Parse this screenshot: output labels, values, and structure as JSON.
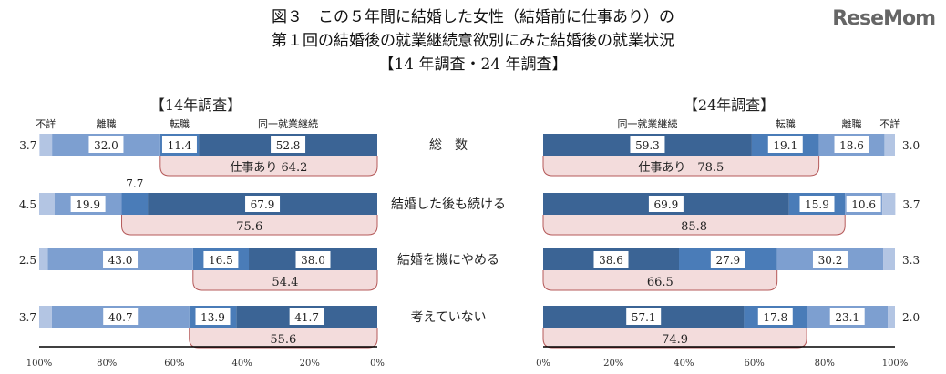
{
  "title": {
    "line1": "図３　この５年間に結婚した女性（結婚前に仕事あり）の",
    "line2": "第１回の結婚後の就業継続意欲別にみた結婚後の就業状況",
    "line3": "【14 年調査・24 年調査】"
  },
  "watermark": "ReseMom",
  "chart_data": [
    {
      "type": "bar",
      "orientation": "horizontal-stacked",
      "title": "【14年調査】",
      "direction": "right-to-left",
      "categories": [
        "総　数",
        "結婚した後も続ける",
        "結婚を機にやめる",
        "考えていない"
      ],
      "series": [
        {
          "name": "同一就業継続",
          "color": "#3b6495",
          "values": [
            52.8,
            67.9,
            38.0,
            41.7
          ]
        },
        {
          "name": "転職",
          "color": "#4a7cb8",
          "values": [
            11.4,
            7.7,
            16.5,
            13.9
          ]
        },
        {
          "name": "離職",
          "color": "#7d9fd0",
          "values": [
            32.0,
            19.9,
            43.0,
            40.7
          ]
        },
        {
          "name": "不詳",
          "color": "#b3c5e3",
          "values": [
            3.7,
            4.5,
            2.5,
            3.7
          ]
        }
      ],
      "work_totals": [
        "仕事あり 64.2",
        "75.6",
        "54.4",
        "55.6"
      ],
      "xticks": [
        "100%",
        "80%",
        "60%",
        "40%",
        "20%",
        "0%"
      ],
      "xlim": [
        0,
        100
      ]
    },
    {
      "type": "bar",
      "orientation": "horizontal-stacked",
      "title": "【24年調査】",
      "direction": "left-to-right",
      "categories": [
        "総　数",
        "結婚した後も続ける",
        "結婚を機にやめる",
        "考えていない"
      ],
      "series": [
        {
          "name": "同一就業継続",
          "color": "#3b6495",
          "values": [
            59.3,
            69.9,
            38.6,
            57.1
          ]
        },
        {
          "name": "転職",
          "color": "#4a7cb8",
          "values": [
            19.1,
            15.9,
            27.9,
            17.8
          ]
        },
        {
          "name": "離職",
          "color": "#7d9fd0",
          "values": [
            18.6,
            10.6,
            30.2,
            23.1
          ]
        },
        {
          "name": "不詳",
          "color": "#b3c5e3",
          "values": [
            3.0,
            3.7,
            3.3,
            2.0
          ]
        }
      ],
      "work_totals": [
        "仕事あり　78.5",
        "85.8",
        "66.5",
        "74.9"
      ],
      "xticks": [
        "0%",
        "20%",
        "40%",
        "60%",
        "80%",
        "100%"
      ],
      "xlim": [
        0,
        100
      ]
    }
  ]
}
